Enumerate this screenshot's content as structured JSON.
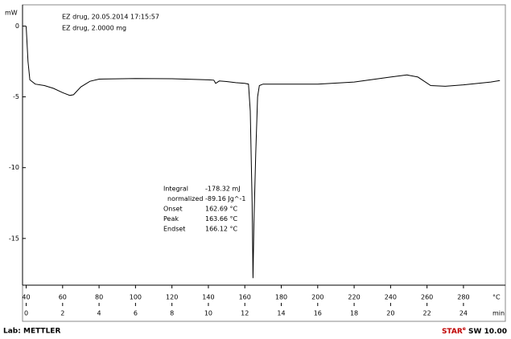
{
  "chart_data": {
    "type": "line",
    "header": [
      "EZ  drug, 20.05.2014 17:15:57",
      "EZ  drug, 2.0000 mg"
    ],
    "y_unit": "mW",
    "x_unit": "°C",
    "x2_unit": "min",
    "x": [
      40,
      41,
      42,
      45,
      50,
      55,
      60,
      64,
      66,
      70,
      75,
      80,
      100,
      120,
      140,
      143,
      144,
      146,
      150,
      155,
      160,
      162,
      163,
      164,
      164.5,
      165,
      166,
      167,
      168,
      170,
      200,
      220,
      240,
      249,
      255,
      262,
      270,
      280,
      295,
      300
    ],
    "series": [
      {
        "color": "#000000",
        "values": [
          0.0,
          -2.5,
          -3.8,
          -4.1,
          -4.2,
          -4.4,
          -4.7,
          -4.9,
          -4.85,
          -4.3,
          -3.9,
          -3.75,
          -3.7,
          -3.72,
          -3.8,
          -3.82,
          -4.05,
          -3.88,
          -3.92,
          -4.0,
          -4.05,
          -4.1,
          -6.0,
          -12.5,
          -17.8,
          -14.0,
          -9.0,
          -5.0,
          -4.2,
          -4.1,
          -4.1,
          -3.95,
          -3.6,
          -3.45,
          -3.6,
          -4.2,
          -4.25,
          -4.15,
          -3.95,
          -3.85
        ]
      }
    ],
    "xlim": [
      38,
      303
    ],
    "ylim": [
      -18.3,
      1.5
    ],
    "xticks": [
      40,
      60,
      80,
      100,
      120,
      140,
      160,
      180,
      200,
      220,
      240,
      260,
      280
    ],
    "yticks": [
      0,
      -5,
      -10,
      -15
    ],
    "x2lim": [
      -0.2,
      26.3
    ],
    "x2ticks": [
      0,
      2,
      4,
      6,
      8,
      10,
      12,
      14,
      16,
      18,
      20,
      22,
      24
    ],
    "grid": false,
    "integral_table": [
      [
        "Integral",
        "-178.32 mJ"
      ],
      [
        "normalized",
        "-89.16 Jg^-1"
      ],
      [
        "Onset",
        "162.69 °C"
      ],
      [
        "Peak",
        "163.66 °C"
      ],
      [
        "Endset",
        "166.12 °C"
      ]
    ],
    "footer_left": "Lab: METTLER",
    "footer_right": [
      "STAR",
      "e",
      " SW 10.00"
    ]
  }
}
